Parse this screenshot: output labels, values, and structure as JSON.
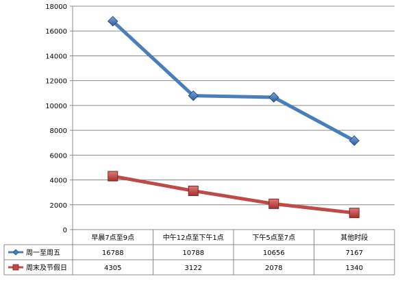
{
  "chart_data": {
    "type": "line",
    "title": "",
    "xlabel": "",
    "ylabel": "",
    "ylim": [
      0,
      18000
    ],
    "y_ticks": [
      0,
      2000,
      4000,
      6000,
      8000,
      10000,
      12000,
      14000,
      16000,
      18000
    ],
    "grid": true,
    "legend_position": "table-left",
    "categories": [
      "早晨7点至9点",
      "中午12点至下午1点",
      "下午5点至7点",
      "其他时段"
    ],
    "series": [
      {
        "name": "周一至周五",
        "values": [
          16788,
          10788,
          10656,
          7167
        ],
        "color": "#4a7ebb",
        "marker": "diamond"
      },
      {
        "name": "周末及节假日",
        "values": [
          4305,
          3122,
          2078,
          1340
        ],
        "color": "#be4b48",
        "marker": "square"
      }
    ]
  }
}
